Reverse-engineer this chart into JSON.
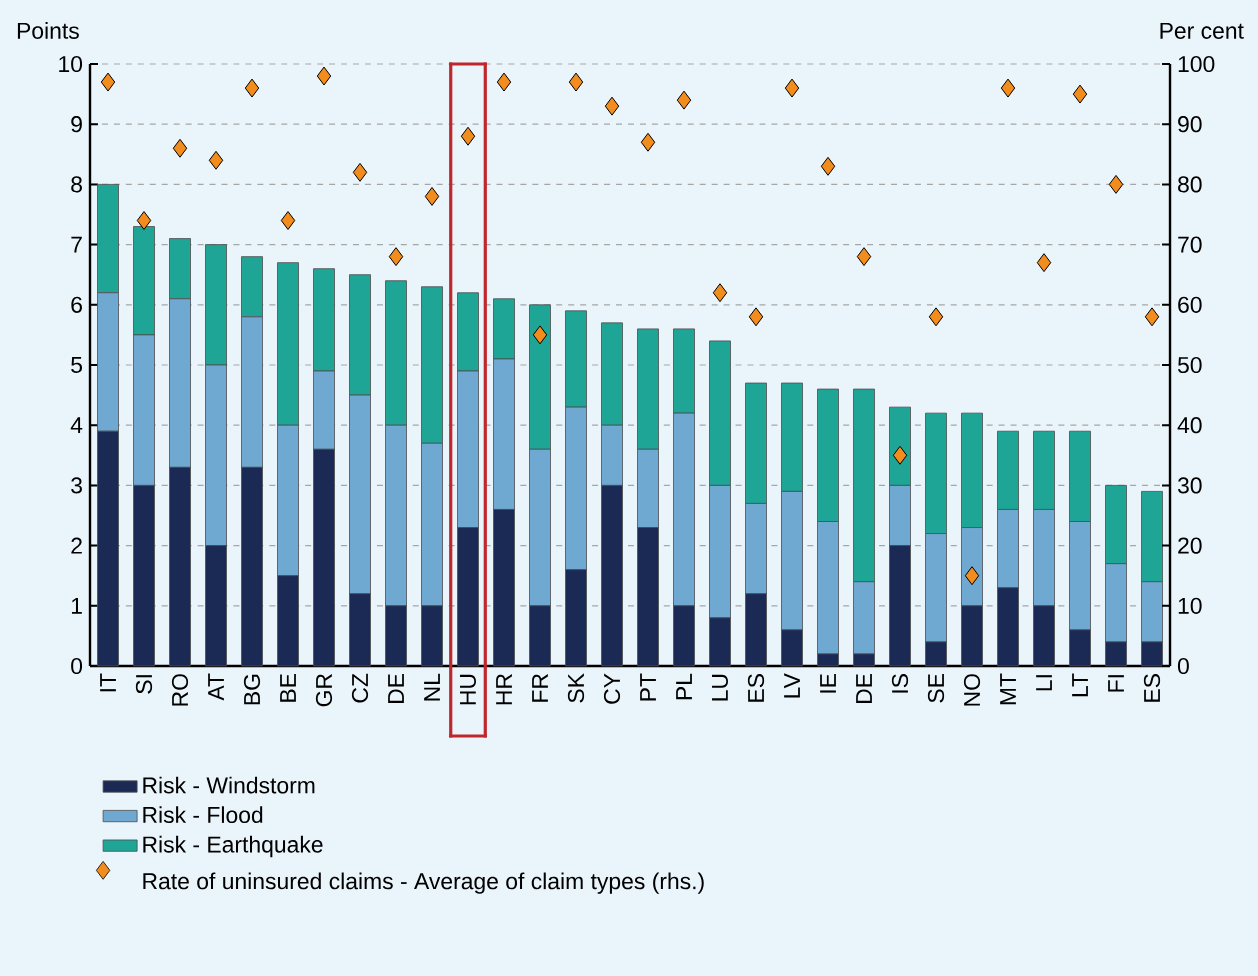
{
  "chart_data": {
    "type": "bar",
    "stacked": true,
    "categories": [
      "IT",
      "SI",
      "RO",
      "AT",
      "BG",
      "BE",
      "GR",
      "CZ",
      "DE",
      "NL",
      "HU",
      "HR",
      "FR",
      "SK",
      "CY",
      "PT",
      "PL",
      "LU",
      "ES",
      "LV",
      "IE",
      "DE",
      "IS",
      "SE",
      "NO",
      "MT",
      "LI",
      "LT",
      "FI",
      "ES"
    ],
    "series": [
      {
        "name": "Risk - Windstorm",
        "color": "#1b2a55",
        "values": [
          3.9,
          3.0,
          3.3,
          2.0,
          3.3,
          1.5,
          3.6,
          1.2,
          1.0,
          1.0,
          2.3,
          2.6,
          1.0,
          1.6,
          3.0,
          2.3,
          1.0,
          0.8,
          1.2,
          0.6,
          0.2,
          0.2,
          2.0,
          0.4,
          1.0,
          1.3,
          1.0,
          0.6,
          0.4,
          0.4
        ]
      },
      {
        "name": "Risk - Flood",
        "color": "#6fa8d0",
        "values": [
          2.3,
          2.5,
          2.8,
          3.0,
          2.5,
          2.5,
          1.3,
          3.3,
          3.0,
          2.7,
          2.6,
          2.5,
          2.6,
          2.7,
          1.0,
          1.3,
          3.2,
          2.2,
          1.5,
          2.3,
          2.2,
          1.2,
          1.0,
          1.8,
          1.3,
          1.3,
          1.6,
          1.8,
          1.3,
          1.0
        ]
      },
      {
        "name": "Risk - Earthquake",
        "color": "#1fa596",
        "values": [
          1.8,
          1.8,
          1.0,
          2.0,
          1.0,
          2.7,
          1.7,
          2.0,
          2.4,
          2.6,
          1.3,
          1.0,
          2.4,
          1.6,
          1.7,
          2.0,
          1.4,
          2.4,
          2.0,
          1.8,
          2.2,
          3.2,
          1.3,
          2.0,
          1.9,
          1.3,
          1.3,
          1.5,
          1.3,
          1.5
        ]
      },
      {
        "name": "Rate of uninsured claims - Average of claim types (rhs.)",
        "type": "scatter",
        "axis": "y2",
        "marker": "diamond",
        "color": "#f28c1c",
        "values": [
          97,
          74,
          86,
          84,
          96,
          74,
          98,
          82,
          68,
          78,
          88,
          97,
          55,
          97,
          93,
          87,
          94,
          62,
          58,
          96,
          83,
          68,
          35,
          58,
          15,
          96,
          67,
          95,
          80,
          58
        ]
      }
    ],
    "ylabel": "Points",
    "y2label": "Per cent",
    "ylim": [
      0,
      10
    ],
    "yticks": [
      0,
      1,
      2,
      3,
      4,
      5,
      6,
      7,
      8,
      9,
      10
    ],
    "y2lim": [
      0,
      100
    ],
    "y2ticks": [
      0,
      10,
      20,
      30,
      40,
      50,
      60,
      70,
      80,
      90,
      100
    ],
    "grid": "y",
    "legend": "bottom"
  }
}
